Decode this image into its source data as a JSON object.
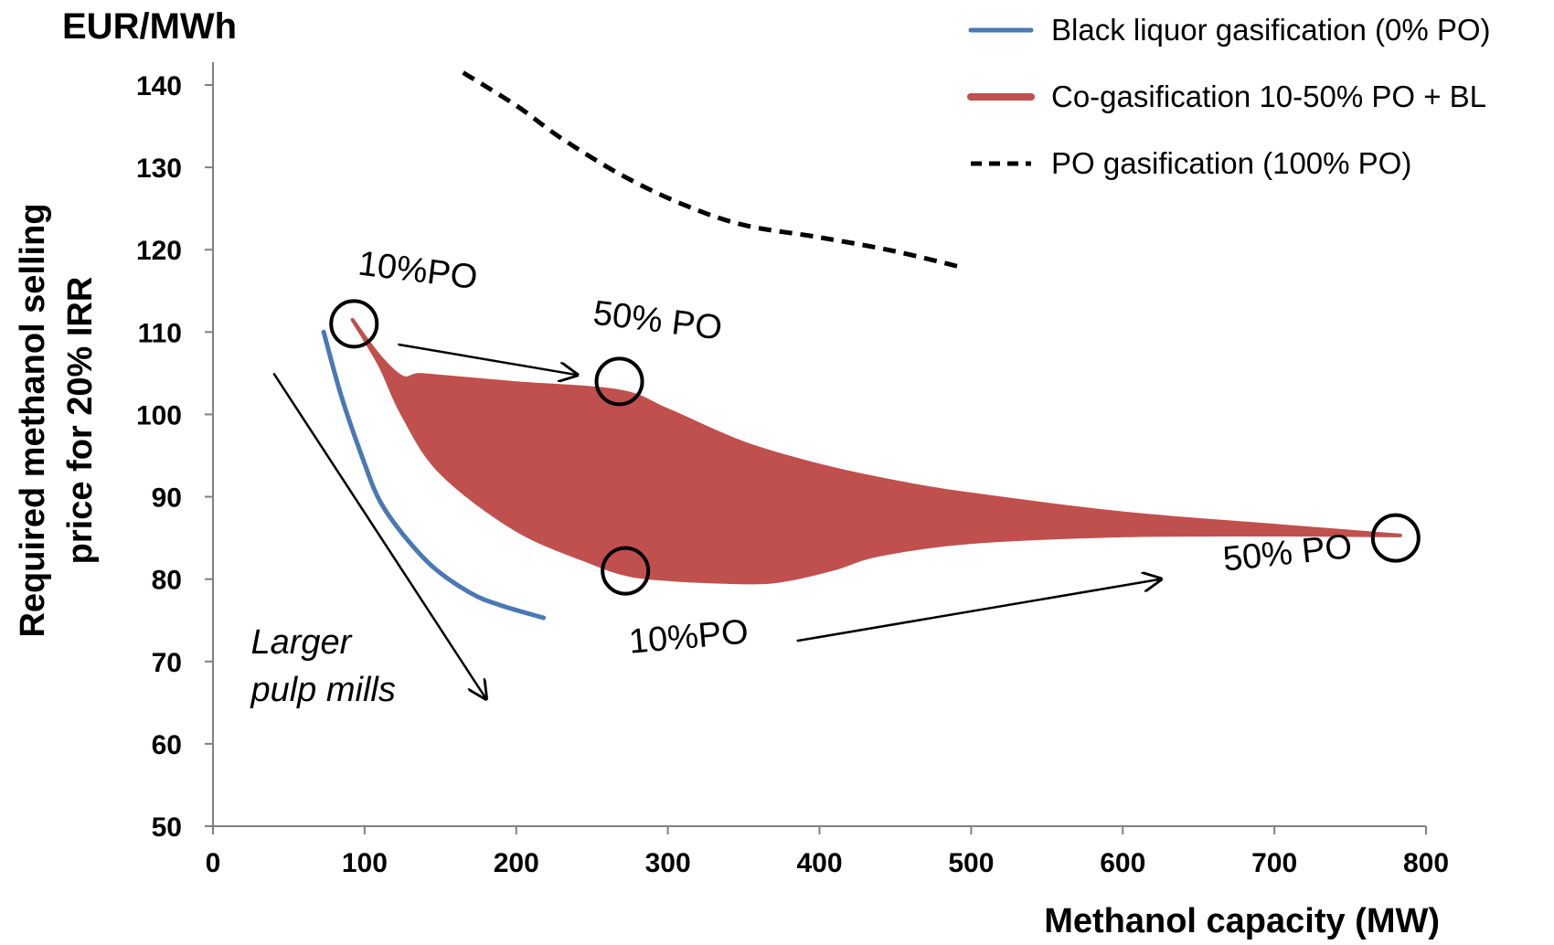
{
  "chart_data": {
    "type": "line",
    "unit_label": "EUR/MWh",
    "xlabel": "Methanol capacity (MW)",
    "ylabel_lines": [
      "Required methanol selling",
      "price for 20% IRR"
    ],
    "xlim": [
      0,
      800
    ],
    "ylim": [
      50,
      140
    ],
    "x_ticks": [
      "0",
      "100",
      "200",
      "300",
      "400",
      "500",
      "600",
      "700",
      "800"
    ],
    "y_ticks": [
      "50",
      "60",
      "70",
      "80",
      "90",
      "100",
      "110",
      "120",
      "130",
      "140"
    ],
    "grid": false,
    "legend_position": "top-right",
    "colors": {
      "black_liquor": "#4a78b4",
      "co_gasification": "#c0504d",
      "po": "#000000"
    },
    "series": [
      {
        "name": "Black liquor gasification (0% PO)",
        "style": "solid-line",
        "x": [
          73,
          85,
          100,
          110,
          125,
          145,
          170,
          190,
          218
        ],
        "y": [
          110,
          102,
          94,
          89.5,
          85.5,
          81.5,
          78.3,
          76.8,
          75.3
        ]
      },
      {
        "name": "Co-gasification 10-50% PO + BL",
        "style": "filled-band",
        "upper": {
          "x": [
            92,
            110,
            125,
            135,
            150,
            200,
            268,
            300,
            350,
            400,
            450,
            500,
            600,
            700,
            783
          ],
          "y": [
            111.5,
            107,
            104.5,
            104.8,
            104.6,
            103.8,
            102.8,
            100.5,
            96.5,
            93.8,
            91.8,
            90.3,
            88,
            86.5,
            85.3
          ]
        },
        "lower": {
          "x": [
            783,
            700,
            600,
            500,
            440,
            410,
            380,
            360,
            330,
            300,
            275,
            250,
            200,
            150,
            125,
            110,
            92
          ],
          "y": [
            85.3,
            85.4,
            85.3,
            84.5,
            83,
            81.3,
            80,
            79.6,
            79.7,
            80,
            80.5,
            82,
            86,
            93,
            100,
            106,
            111.5
          ]
        }
      },
      {
        "name": "PO gasification (100% PO)",
        "style": "dashed-line",
        "x": [
          165,
          200,
          230,
          270,
          310,
          350,
          400,
          450,
          495
        ],
        "y": [
          141.5,
          137.5,
          133.5,
          129,
          125.5,
          123,
          121.5,
          119.8,
          117.8
        ]
      }
    ],
    "annotations": [
      {
        "text": "10%PO",
        "x": 95,
        "y": 117
      },
      {
        "text": "50% PO",
        "x": 250,
        "y": 111
      },
      {
        "text": "10%PO",
        "x": 275,
        "y": 71
      },
      {
        "text": "50% PO",
        "x": 667,
        "y": 81
      },
      {
        "text": "Larger",
        "x": 25,
        "y": 71
      },
      {
        "text": "pulp mills",
        "x": 25,
        "y": 65.2
      }
    ],
    "marker_circles": [
      {
        "x": 93,
        "y": 111
      },
      {
        "x": 268,
        "y": 104
      },
      {
        "x": 272,
        "y": 81
      },
      {
        "x": 780,
        "y": 85
      }
    ],
    "arrows": [
      {
        "from": [
          122,
          108.5
        ],
        "to": [
          240,
          104.8
        ]
      },
      {
        "from": [
          385,
          72.5
        ],
        "to": [
          625,
          80
        ]
      },
      {
        "from": [
          40,
          105
        ],
        "to": [
          180,
          65.5
        ]
      }
    ]
  }
}
